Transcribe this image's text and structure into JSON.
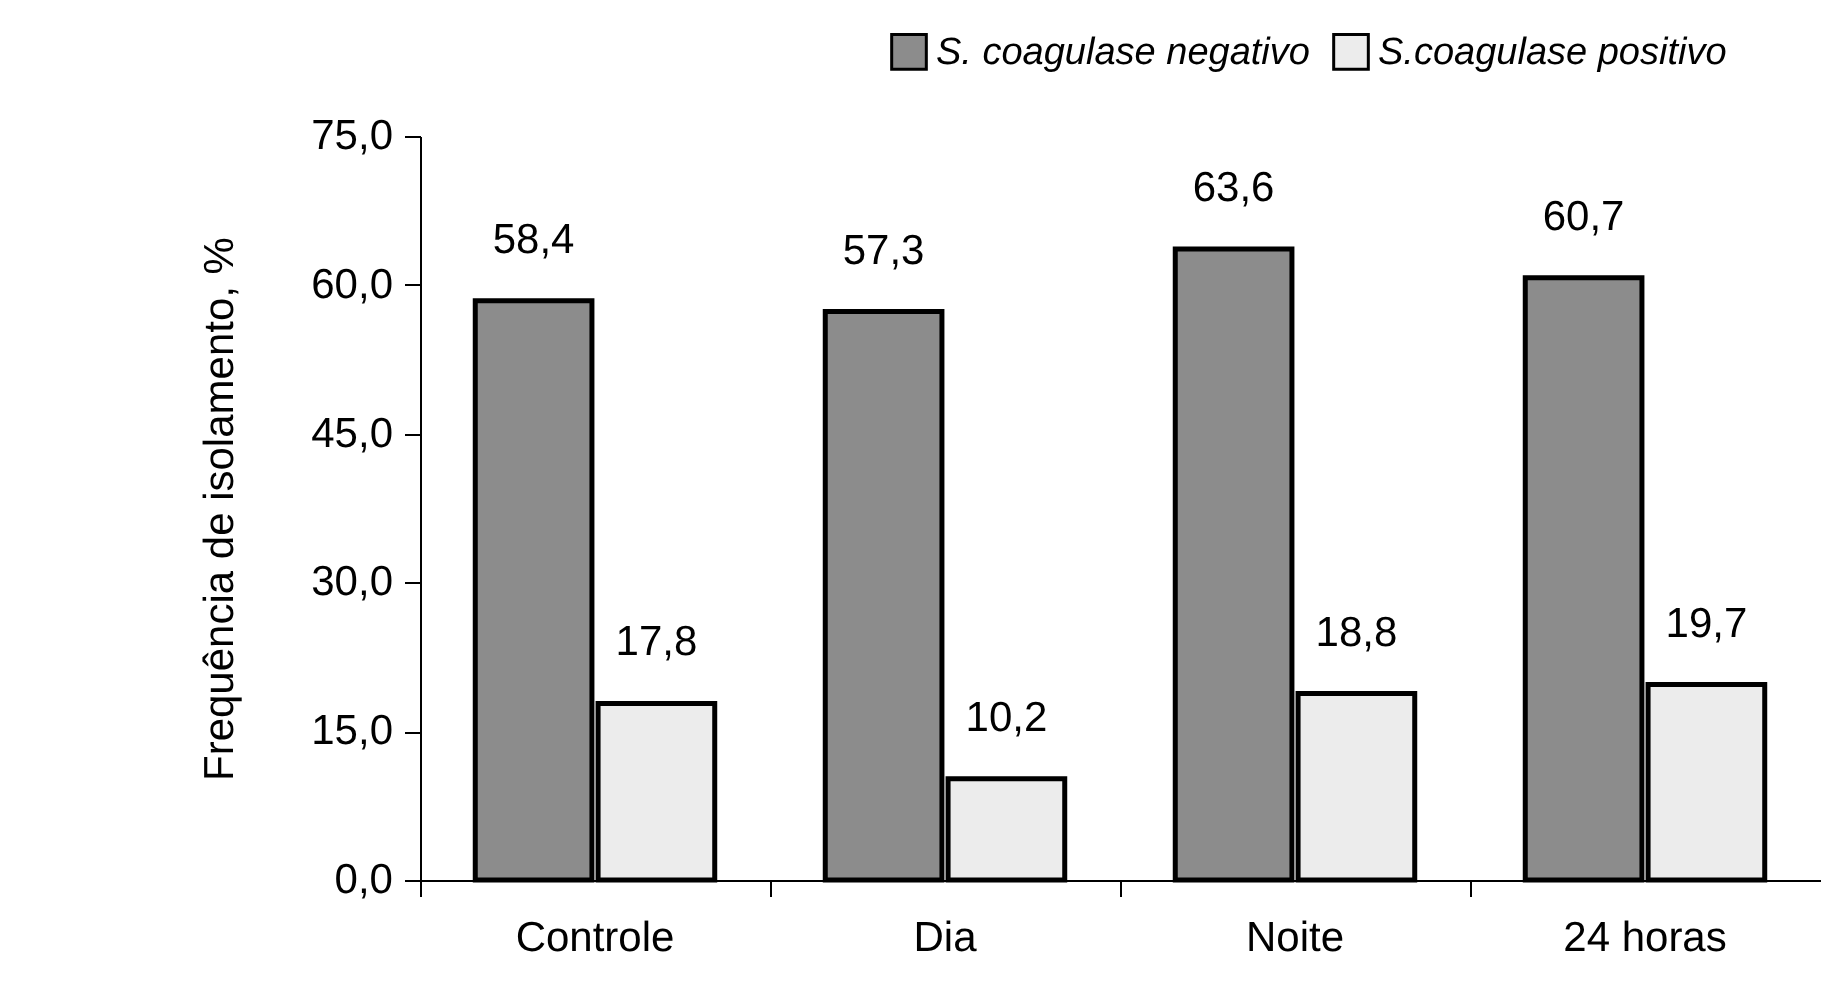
{
  "chart_data": {
    "type": "bar",
    "ylabel": "Frequência de isolamento, %",
    "categories": [
      "Controle",
      "Dia",
      "Noite",
      "24 horas"
    ],
    "series": [
      {
        "name": "S. coagulase negativo",
        "color": "#8c8c8c",
        "values": [
          58.4,
          57.3,
          63.6,
          60.7
        ],
        "value_labels": [
          "58,4",
          "57,3",
          "63,6",
          "60,7"
        ]
      },
      {
        "name": "S.coagulase positivo",
        "color": "#ececec",
        "values": [
          17.8,
          10.2,
          18.8,
          19.7
        ],
        "value_labels": [
          "17,8",
          "10,2",
          "18,8",
          "19,7"
        ]
      }
    ],
    "ylim": [
      0,
      75
    ],
    "yticks": [
      {
        "value": 0,
        "label": "0,0"
      },
      {
        "value": 15,
        "label": "15,0"
      },
      {
        "value": 30,
        "label": "30,0"
      },
      {
        "value": 45,
        "label": "45,0"
      },
      {
        "value": 60,
        "label": "60,0"
      },
      {
        "value": 75,
        "label": "75,0"
      }
    ],
    "grid": false,
    "legend": "top right"
  }
}
